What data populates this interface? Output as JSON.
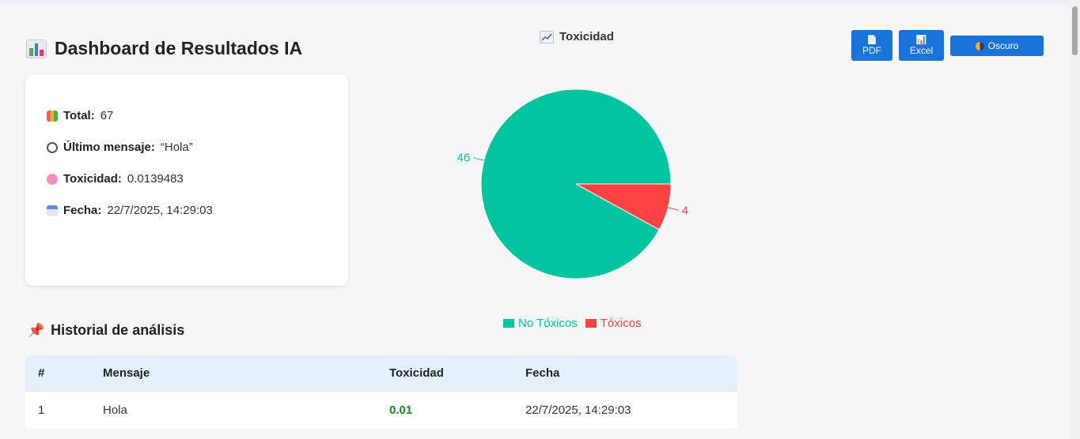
{
  "header": {
    "title": "Dashboard de Resultados IA"
  },
  "toolbar": {
    "pdf_label": "PDF",
    "excel_label": "Excel",
    "theme_label": "Oscuro"
  },
  "stats": {
    "total_label": "Total:",
    "total_value": "67",
    "last_label": "Último mensaje:",
    "last_value": "“Hola”",
    "tox_label": "Toxicidad:",
    "tox_value": "0.0139483",
    "date_label": "Fecha:",
    "date_value": "22/7/2025, 14:29:03"
  },
  "chart_data": {
    "type": "pie",
    "title": "Toxicidad",
    "categories": [
      "No Tóxicos",
      "Tóxicos"
    ],
    "values": [
      46,
      4
    ],
    "colors": [
      "#00c49f",
      "#ff4242"
    ],
    "legend": "bottom"
  },
  "history": {
    "title": "Historial de análisis",
    "columns": [
      "#",
      "Mensaje",
      "Toxicidad",
      "Fecha"
    ],
    "rows": [
      {
        "id": "1",
        "message": "Hola",
        "toxicity": "0.01",
        "date": "22/7/2025, 14:29:03"
      }
    ]
  }
}
